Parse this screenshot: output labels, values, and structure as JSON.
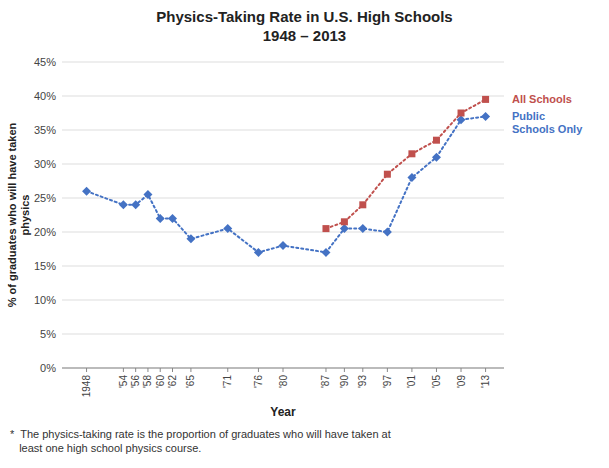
{
  "chart_data": {
    "type": "line",
    "title": "Physics-Taking Rate in U.S. High Schools",
    "subtitle": "1948 – 2013",
    "x_label": "Year",
    "y_label": "% of graduates who will have taken\nphysics",
    "footnote": "*  The physics-taking rate is the proportion of graduates who will have taken at\n   least one high school physics course.",
    "xlim": [
      1944,
      2016
    ],
    "xticks": [
      1948,
      {
        "value": 1954,
        "label": "'54"
      },
      {
        "value": 1956,
        "label": "'56"
      },
      {
        "value": 1958,
        "label": "'58"
      },
      {
        "value": 1960,
        "label": "'60"
      },
      {
        "value": 1962,
        "label": "'62"
      },
      {
        "value": 1965,
        "label": "'65"
      },
      {
        "value": 1971,
        "label": "'71"
      },
      {
        "value": 1976,
        "label": "'76"
      },
      {
        "value": 1980,
        "label": "'80"
      },
      {
        "value": 1987,
        "label": "'87"
      },
      {
        "value": 1990,
        "label": "'90"
      },
      {
        "value": 1993,
        "label": "'93"
      },
      {
        "value": 1997,
        "label": "'97"
      },
      {
        "value": 2001,
        "label": "'01"
      },
      {
        "value": 2005,
        "label": "'05"
      },
      {
        "value": 2009,
        "label": "'09"
      },
      {
        "value": 2013,
        "label": "'13"
      }
    ],
    "ylim": [
      0,
      0.45
    ],
    "yticks": [
      {
        "value": 0.0,
        "label": "0%"
      },
      {
        "value": 0.05,
        "label": "5%"
      },
      {
        "value": 0.1,
        "label": "10%"
      },
      {
        "value": 0.15,
        "label": "15%"
      },
      {
        "value": 0.2,
        "label": "20%"
      },
      {
        "value": 0.25,
        "label": "25%"
      },
      {
        "value": 0.3,
        "label": "30%"
      },
      {
        "value": 0.35,
        "label": "35%"
      },
      {
        "value": 0.4,
        "label": "40%"
      },
      {
        "value": 0.45,
        "label": "45%"
      }
    ],
    "grid": true,
    "legend": "right",
    "series": [
      {
        "name": "Public\nSchools Only",
        "color": "#4472c4",
        "marker": "diamond",
        "line_style": "dotted",
        "x": [
          1948,
          1954,
          1956,
          1958,
          1960,
          1962,
          1965,
          1971,
          1976,
          1980,
          1987,
          1990,
          1993,
          1997,
          2001,
          2005,
          2009,
          2013
        ],
        "values": [
          0.26,
          0.24,
          0.24,
          0.255,
          0.22,
          0.22,
          0.19,
          0.205,
          0.17,
          0.18,
          0.17,
          0.205,
          0.205,
          0.2,
          0.28,
          0.31,
          0.365,
          0.37
        ]
      },
      {
        "name": "All Schools",
        "color": "#c0504d",
        "marker": "square",
        "line_style": "dotted",
        "x": [
          1987,
          1990,
          1993,
          1997,
          2001,
          2005,
          2009,
          2013
        ],
        "values": [
          0.205,
          0.215,
          0.24,
          0.285,
          0.315,
          0.335,
          0.375,
          0.395
        ]
      }
    ]
  }
}
